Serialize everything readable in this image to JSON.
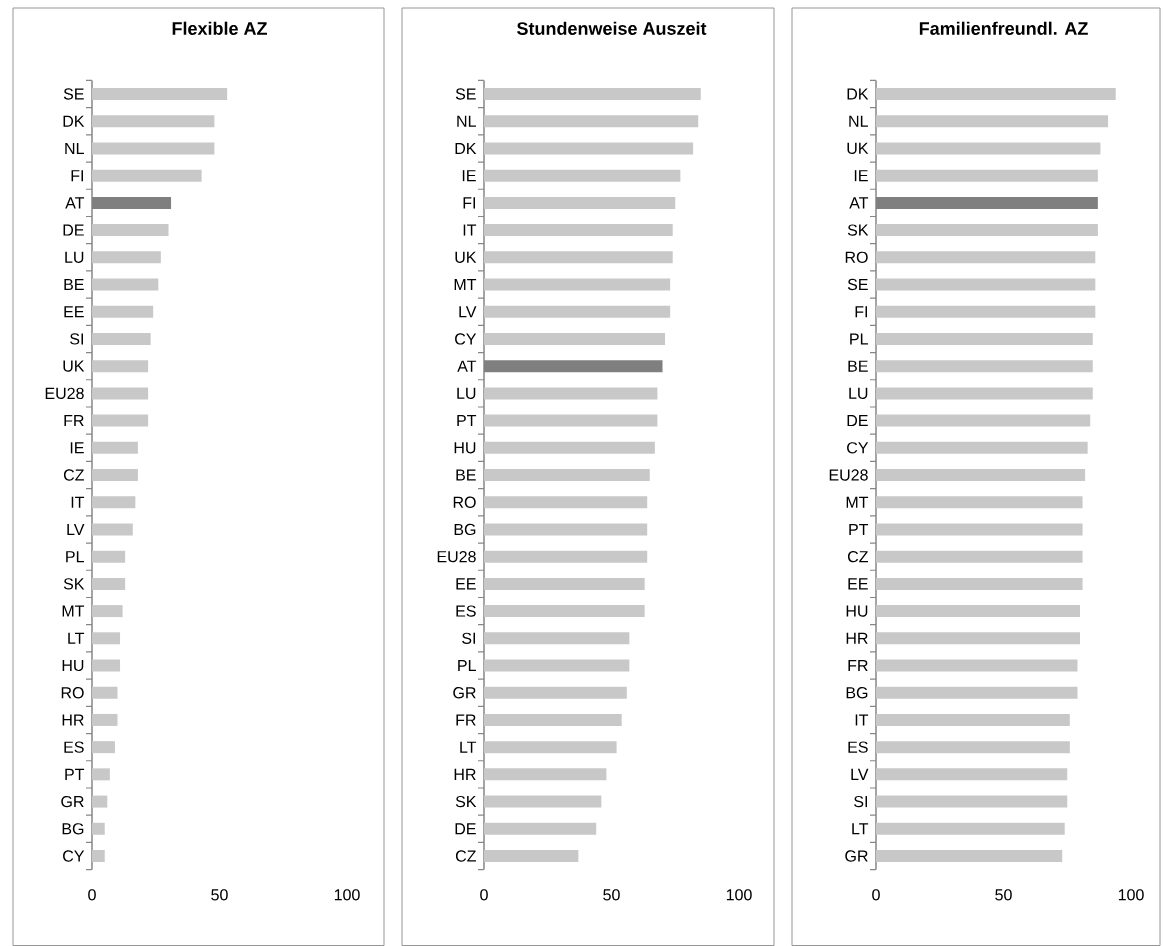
{
  "chart_data": [
    {
      "type": "bar",
      "orientation": "horizontal",
      "title": "Flexible AZ",
      "categories": [
        "SE",
        "DK",
        "NL",
        "FI",
        "AT",
        "DE",
        "LU",
        "BE",
        "EE",
        "SI",
        "UK",
        "EU28",
        "FR",
        "IE",
        "CZ",
        "IT",
        "LV",
        "PL",
        "SK",
        "MT",
        "LT",
        "HU",
        "RO",
        "HR",
        "ES",
        "PT",
        "GR",
        "BG",
        "CY"
      ],
      "values": [
        53,
        48,
        48,
        43,
        31,
        30,
        27,
        26,
        24,
        23,
        22,
        22,
        22,
        18,
        18,
        17,
        16,
        13,
        13,
        12,
        11,
        11,
        10,
        10,
        9,
        7,
        6,
        5,
        5
      ],
      "colors": [
        "#c8c8c8",
        "#c8c8c8",
        "#c8c8c8",
        "#c8c8c8",
        "#7f7f7f",
        "#c8c8c8",
        "#c8c8c8",
        "#c8c8c8",
        "#c8c8c8",
        "#c8c8c8",
        "#c8c8c8",
        "#c8c8c8",
        "#c8c8c8",
        "#c8c8c8",
        "#c8c8c8",
        "#c8c8c8",
        "#c8c8c8",
        "#c8c8c8",
        "#c8c8c8",
        "#c8c8c8",
        "#c8c8c8",
        "#c8c8c8",
        "#c8c8c8",
        "#c8c8c8",
        "#c8c8c8",
        "#c8c8c8",
        "#c8c8c8",
        "#c8c8c8",
        "#c8c8c8"
      ],
      "xlim": [
        0,
        100
      ],
      "xticks": [
        0,
        50,
        100
      ]
    },
    {
      "type": "bar",
      "orientation": "horizontal",
      "title": "Stundenweise Auszeit",
      "categories": [
        "SE",
        "NL",
        "DK",
        "IE",
        "FI",
        "IT",
        "UK",
        "MT",
        "LV",
        "CY",
        "AT",
        "LU",
        "PT",
        "HU",
        "BE",
        "RO",
        "BG",
        "EU28",
        "EE",
        "ES",
        "SI",
        "PL",
        "GR",
        "FR",
        "LT",
        "HR",
        "SK",
        "DE",
        "CZ"
      ],
      "values": [
        85,
        84,
        82,
        77,
        75,
        74,
        74,
        73,
        73,
        71,
        70,
        68,
        68,
        67,
        65,
        64,
        64,
        64,
        63,
        63,
        57,
        57,
        56,
        54,
        52,
        48,
        46,
        44,
        37
      ],
      "colors": [
        "#c8c8c8",
        "#c8c8c8",
        "#c8c8c8",
        "#c8c8c8",
        "#c8c8c8",
        "#c8c8c8",
        "#c8c8c8",
        "#c8c8c8",
        "#c8c8c8",
        "#c8c8c8",
        "#7f7f7f",
        "#c8c8c8",
        "#c8c8c8",
        "#c8c8c8",
        "#c8c8c8",
        "#c8c8c8",
        "#c8c8c8",
        "#c8c8c8",
        "#c8c8c8",
        "#c8c8c8",
        "#c8c8c8",
        "#c8c8c8",
        "#c8c8c8",
        "#c8c8c8",
        "#c8c8c8",
        "#c8c8c8",
        "#c8c8c8",
        "#c8c8c8",
        "#c8c8c8"
      ],
      "xlim": [
        0,
        100
      ],
      "xticks": [
        0,
        50,
        100
      ]
    },
    {
      "type": "bar",
      "orientation": "horizontal",
      "title": "Familienfreundl. AZ",
      "categories": [
        "DK",
        "NL",
        "UK",
        "IE",
        "AT",
        "SK",
        "RO",
        "SE",
        "FI",
        "PL",
        "BE",
        "LU",
        "DE",
        "CY",
        "EU28",
        "MT",
        "PT",
        "CZ",
        "EE",
        "HU",
        "HR",
        "FR",
        "BG",
        "IT",
        "ES",
        "LV",
        "SI",
        "LT",
        "GR"
      ],
      "values": [
        94,
        91,
        88,
        87,
        87,
        87,
        86,
        86,
        86,
        85,
        85,
        85,
        84,
        83,
        82,
        81,
        81,
        81,
        81,
        80,
        80,
        79,
        79,
        76,
        76,
        75,
        75,
        74,
        73
      ],
      "colors": [
        "#c8c8c8",
        "#c8c8c8",
        "#c8c8c8",
        "#c8c8c8",
        "#7f7f7f",
        "#c8c8c8",
        "#c8c8c8",
        "#c8c8c8",
        "#c8c8c8",
        "#c8c8c8",
        "#c8c8c8",
        "#c8c8c8",
        "#c8c8c8",
        "#c8c8c8",
        "#c8c8c8",
        "#c8c8c8",
        "#c8c8c8",
        "#c8c8c8",
        "#c8c8c8",
        "#c8c8c8",
        "#c8c8c8",
        "#c8c8c8",
        "#c8c8c8",
        "#c8c8c8",
        "#c8c8c8",
        "#c8c8c8",
        "#c8c8c8",
        "#c8c8c8",
        "#c8c8c8"
      ],
      "xlim": [
        0,
        100
      ],
      "xticks": [
        0,
        50,
        100
      ]
    }
  ]
}
